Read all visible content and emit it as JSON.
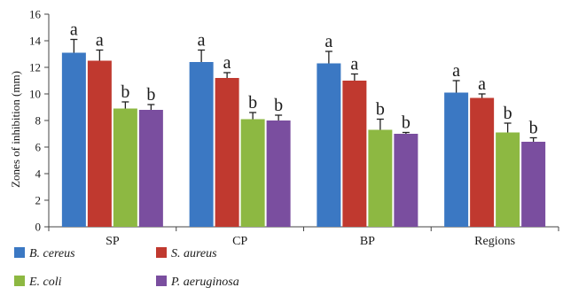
{
  "chart_data": {
    "type": "bar",
    "ylabel": "Zones of inhibition (mm)",
    "xlabel": "",
    "ylim": [
      0,
      16
    ],
    "yticks": [
      0,
      2,
      4,
      6,
      8,
      10,
      12,
      14,
      16
    ],
    "grid": false,
    "legend_position": "bottom",
    "categories": [
      "SP",
      "CP",
      "BP",
      "Regions"
    ],
    "series": [
      {
        "name": "B. cereus",
        "color": "#3B78C3",
        "values": [
          13.1,
          12.4,
          12.3,
          10.1
        ],
        "errors": [
          1.0,
          0.9,
          0.9,
          0.9
        ],
        "labels": [
          "a",
          "a",
          "a",
          "a"
        ]
      },
      {
        "name": "S. aureus",
        "color": "#C0392F",
        "values": [
          12.5,
          11.2,
          11.0,
          9.7
        ],
        "errors": [
          0.8,
          0.4,
          0.5,
          0.3
        ],
        "labels": [
          "a",
          "a",
          "a",
          "a"
        ]
      },
      {
        "name": "E. coli",
        "color": "#8DB842",
        "values": [
          8.9,
          8.1,
          7.3,
          7.1
        ],
        "errors": [
          0.5,
          0.5,
          0.8,
          0.7
        ],
        "labels": [
          "b",
          "b",
          "b",
          "b"
        ]
      },
      {
        "name": "P. aeruginosa",
        "color": "#7A4E9F",
        "values": [
          8.8,
          8.0,
          7.0,
          6.4
        ],
        "errors": [
          0.4,
          0.4,
          0.1,
          0.3
        ],
        "labels": [
          "b",
          "b",
          "b",
          "b"
        ]
      }
    ]
  }
}
